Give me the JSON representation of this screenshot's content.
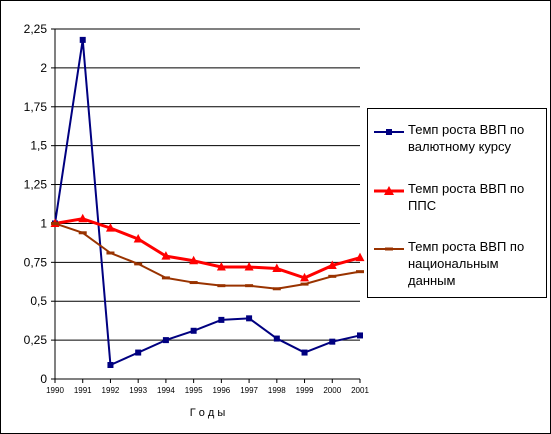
{
  "chart_data": {
    "type": "line",
    "xlabel": "Г о д ы",
    "ylabel": "",
    "ylim": [
      0,
      2.25
    ],
    "yticks": [
      "0",
      "0,25",
      "0,5",
      "0,75",
      "1",
      "1,25",
      "1,5",
      "1,75",
      "2",
      "2,25"
    ],
    "x": [
      "1990",
      "1991",
      "1992",
      "1993",
      "1994",
      "1995",
      "1996",
      "1997",
      "1998",
      "1999",
      "2000",
      "2001"
    ],
    "grid": true,
    "legend_position": "right",
    "series": [
      {
        "name": "Темп роста ВВП по валютному курсу",
        "color": "#000080",
        "marker": "square",
        "values": [
          1.0,
          2.18,
          0.09,
          0.17,
          0.25,
          0.31,
          0.38,
          0.39,
          0.26,
          0.17,
          0.24,
          0.28
        ]
      },
      {
        "name": "Темп роста ВВП по ППС",
        "color": "#ff0000",
        "marker": "triangle",
        "values": [
          1.0,
          1.03,
          0.97,
          0.9,
          0.79,
          0.76,
          0.72,
          0.72,
          0.71,
          0.65,
          0.73,
          0.78
        ]
      },
      {
        "name": "Темп роста ВВП по национальным данным",
        "color": "#993300",
        "marker": "dash",
        "values": [
          1.0,
          0.94,
          0.81,
          0.74,
          0.65,
          0.62,
          0.6,
          0.6,
          0.58,
          0.61,
          0.66,
          0.69
        ]
      }
    ]
  },
  "legend": {
    "items": [
      {
        "lines": [
          "Темп роста ВВП по",
          "валютному курсу"
        ]
      },
      {
        "lines": [
          "Темп роста ВВП по",
          "ППС"
        ]
      },
      {
        "lines": [
          "Темп роста ВВП по",
          "национальным",
          "данным"
        ]
      }
    ]
  }
}
